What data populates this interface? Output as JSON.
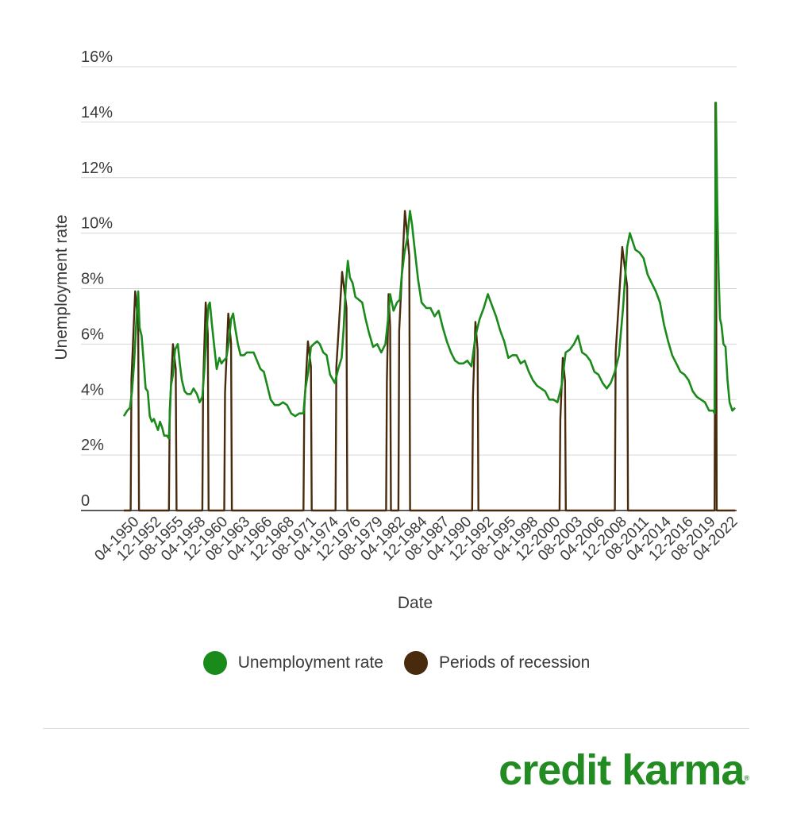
{
  "chart_data": {
    "type": "line",
    "xlabel": "Date",
    "ylabel": "Unemployment rate",
    "ylim": [
      0,
      16
    ],
    "x_range": [
      "01-1948",
      "08-2022"
    ],
    "y_ticks": [
      {
        "value": 0,
        "label": "0"
      },
      {
        "value": 2,
        "label": "2%"
      },
      {
        "value": 4,
        "label": "4%"
      },
      {
        "value": 6,
        "label": "6%"
      },
      {
        "value": 8,
        "label": "8%"
      },
      {
        "value": 10,
        "label": "10%"
      },
      {
        "value": 12,
        "label": "12%"
      },
      {
        "value": 14,
        "label": "14%"
      },
      {
        "value": 16,
        "label": "16%"
      }
    ],
    "x_tick_labels": [
      "04-1950",
      "12-1952",
      "08-1955",
      "04-1958",
      "12-1960",
      "08-1963",
      "04-1966",
      "12-1968",
      "08-1971",
      "04-1974",
      "12-1976",
      "08-1979",
      "04-1982",
      "12-1984",
      "08-1987",
      "04-1990",
      "12-1992",
      "08-1995",
      "04-1998",
      "12-2000",
      "08-2003",
      "04-2006",
      "12-2008",
      "08-2011",
      "04-2014",
      "12-2016",
      "08-2019",
      "04-2022"
    ],
    "grid": true,
    "legend_position": "bottom",
    "series": [
      {
        "name": "Unemployment rate",
        "color": "#1a8a1a",
        "points": [
          [
            "01-1948",
            3.4
          ],
          [
            "06-1948",
            3.6
          ],
          [
            "10-1948",
            3.7
          ],
          [
            "01-1949",
            4.3
          ],
          [
            "04-1949",
            5.3
          ],
          [
            "07-1949",
            6.7
          ],
          [
            "10-1949",
            7.9
          ],
          [
            "12-1949",
            6.6
          ],
          [
            "03-1950",
            6.3
          ],
          [
            "06-1950",
            5.4
          ],
          [
            "09-1950",
            4.4
          ],
          [
            "12-1950",
            4.3
          ],
          [
            "03-1951",
            3.4
          ],
          [
            "06-1951",
            3.2
          ],
          [
            "09-1951",
            3.3
          ],
          [
            "12-1951",
            3.1
          ],
          [
            "03-1952",
            2.9
          ],
          [
            "06-1952",
            3.2
          ],
          [
            "09-1952",
            3.0
          ],
          [
            "12-1952",
            2.7
          ],
          [
            "04-1953",
            2.7
          ],
          [
            "07-1953",
            2.6
          ],
          [
            "10-1953",
            4.5
          ],
          [
            "01-1954",
            4.9
          ],
          [
            "04-1954",
            5.8
          ],
          [
            "08-1954",
            6.0
          ],
          [
            "11-1954",
            5.3
          ],
          [
            "02-1955",
            4.7
          ],
          [
            "06-1955",
            4.3
          ],
          [
            "10-1955",
            4.2
          ],
          [
            "03-1956",
            4.2
          ],
          [
            "07-1956",
            4.4
          ],
          [
            "12-1956",
            4.2
          ],
          [
            "04-1957",
            3.9
          ],
          [
            "08-1957",
            4.1
          ],
          [
            "11-1957",
            5.1
          ],
          [
            "02-1958",
            6.4
          ],
          [
            "05-1958",
            7.4
          ],
          [
            "07-1958",
            7.5
          ],
          [
            "10-1958",
            6.7
          ],
          [
            "01-1959",
            6.0
          ],
          [
            "05-1959",
            5.1
          ],
          [
            "09-1959",
            5.5
          ],
          [
            "12-1959",
            5.3
          ],
          [
            "03-1960",
            5.4
          ],
          [
            "07-1960",
            5.5
          ],
          [
            "11-1960",
            6.1
          ],
          [
            "02-1961",
            6.9
          ],
          [
            "05-1961",
            7.1
          ],
          [
            "08-1961",
            6.6
          ],
          [
            "12-1961",
            6.0
          ],
          [
            "04-1962",
            5.6
          ],
          [
            "09-1962",
            5.6
          ],
          [
            "01-1963",
            5.7
          ],
          [
            "06-1963",
            5.7
          ],
          [
            "11-1963",
            5.7
          ],
          [
            "04-1964",
            5.4
          ],
          [
            "09-1964",
            5.1
          ],
          [
            "02-1965",
            5.0
          ],
          [
            "07-1965",
            4.5
          ],
          [
            "12-1965",
            4.0
          ],
          [
            "06-1966",
            3.8
          ],
          [
            "12-1966",
            3.8
          ],
          [
            "06-1967",
            3.9
          ],
          [
            "12-1967",
            3.8
          ],
          [
            "06-1968",
            3.5
          ],
          [
            "12-1968",
            3.4
          ],
          [
            "06-1969",
            3.5
          ],
          [
            "12-1969",
            3.5
          ],
          [
            "03-1970",
            4.4
          ],
          [
            "07-1970",
            5.0
          ],
          [
            "11-1970",
            5.9
          ],
          [
            "03-1971",
            6.0
          ],
          [
            "08-1971",
            6.1
          ],
          [
            "12-1971",
            6.0
          ],
          [
            "05-1972",
            5.7
          ],
          [
            "10-1972",
            5.6
          ],
          [
            "03-1973",
            4.9
          ],
          [
            "10-1973",
            4.6
          ],
          [
            "03-1974",
            5.1
          ],
          [
            "08-1974",
            5.5
          ],
          [
            "11-1974",
            6.6
          ],
          [
            "02-1975",
            8.1
          ],
          [
            "05-1975",
            9.0
          ],
          [
            "08-1975",
            8.4
          ],
          [
            "12-1975",
            8.2
          ],
          [
            "04-1976",
            7.7
          ],
          [
            "09-1976",
            7.6
          ],
          [
            "02-1977",
            7.5
          ],
          [
            "07-1977",
            6.9
          ],
          [
            "12-1977",
            6.4
          ],
          [
            "06-1978",
            5.9
          ],
          [
            "12-1978",
            6.0
          ],
          [
            "06-1979",
            5.7
          ],
          [
            "12-1979",
            6.0
          ],
          [
            "04-1980",
            6.9
          ],
          [
            "07-1980",
            7.8
          ],
          [
            "12-1980",
            7.2
          ],
          [
            "05-1981",
            7.5
          ],
          [
            "09-1981",
            7.6
          ],
          [
            "12-1981",
            8.5
          ],
          [
            "04-1982",
            9.3
          ],
          [
            "08-1982",
            9.8
          ],
          [
            "12-1982",
            10.8
          ],
          [
            "03-1983",
            10.3
          ],
          [
            "07-1983",
            9.4
          ],
          [
            "12-1983",
            8.3
          ],
          [
            "05-1984",
            7.5
          ],
          [
            "12-1984",
            7.3
          ],
          [
            "06-1985",
            7.3
          ],
          [
            "12-1985",
            7.0
          ],
          [
            "06-1986",
            7.2
          ],
          [
            "12-1986",
            6.6
          ],
          [
            "06-1987",
            6.1
          ],
          [
            "12-1987",
            5.7
          ],
          [
            "06-1988",
            5.4
          ],
          [
            "12-1988",
            5.3
          ],
          [
            "06-1989",
            5.3
          ],
          [
            "12-1989",
            5.4
          ],
          [
            "06-1990",
            5.2
          ],
          [
            "12-1990",
            6.3
          ],
          [
            "06-1991",
            6.9
          ],
          [
            "12-1991",
            7.3
          ],
          [
            "06-1992",
            7.8
          ],
          [
            "12-1992",
            7.4
          ],
          [
            "06-1993",
            7.0
          ],
          [
            "12-1993",
            6.5
          ],
          [
            "06-1994",
            6.1
          ],
          [
            "12-1994",
            5.5
          ],
          [
            "06-1995",
            5.6
          ],
          [
            "12-1995",
            5.6
          ],
          [
            "06-1996",
            5.3
          ],
          [
            "12-1996",
            5.4
          ],
          [
            "06-1997",
            5.0
          ],
          [
            "12-1997",
            4.7
          ],
          [
            "06-1998",
            4.5
          ],
          [
            "12-1998",
            4.4
          ],
          [
            "06-1999",
            4.3
          ],
          [
            "12-1999",
            4.0
          ],
          [
            "06-2000",
            4.0
          ],
          [
            "12-2000",
            3.9
          ],
          [
            "06-2001",
            4.5
          ],
          [
            "12-2001",
            5.7
          ],
          [
            "06-2002",
            5.8
          ],
          [
            "12-2002",
            6.0
          ],
          [
            "06-2003",
            6.3
          ],
          [
            "12-2003",
            5.7
          ],
          [
            "06-2004",
            5.6
          ],
          [
            "12-2004",
            5.4
          ],
          [
            "06-2005",
            5.0
          ],
          [
            "12-2005",
            4.9
          ],
          [
            "06-2006",
            4.6
          ],
          [
            "12-2006",
            4.4
          ],
          [
            "06-2007",
            4.6
          ],
          [
            "12-2007",
            5.0
          ],
          [
            "06-2008",
            5.6
          ],
          [
            "12-2008",
            7.3
          ],
          [
            "06-2009",
            9.5
          ],
          [
            "10-2009",
            10.0
          ],
          [
            "06-2010",
            9.4
          ],
          [
            "12-2010",
            9.3
          ],
          [
            "06-2011",
            9.1
          ],
          [
            "12-2011",
            8.5
          ],
          [
            "06-2012",
            8.2
          ],
          [
            "12-2012",
            7.9
          ],
          [
            "06-2013",
            7.5
          ],
          [
            "12-2013",
            6.7
          ],
          [
            "06-2014",
            6.1
          ],
          [
            "12-2014",
            5.6
          ],
          [
            "06-2015",
            5.3
          ],
          [
            "12-2015",
            5.0
          ],
          [
            "06-2016",
            4.9
          ],
          [
            "12-2016",
            4.7
          ],
          [
            "06-2017",
            4.3
          ],
          [
            "12-2017",
            4.1
          ],
          [
            "06-2018",
            4.0
          ],
          [
            "12-2018",
            3.9
          ],
          [
            "06-2019",
            3.6
          ],
          [
            "12-2019",
            3.6
          ],
          [
            "02-2020",
            3.5
          ],
          [
            "04-2020",
            14.7
          ],
          [
            "06-2020",
            11.0
          ],
          [
            "08-2020",
            8.4
          ],
          [
            "10-2020",
            6.9
          ],
          [
            "12-2020",
            6.7
          ],
          [
            "03-2021",
            6.0
          ],
          [
            "06-2021",
            5.9
          ],
          [
            "09-2021",
            4.7
          ],
          [
            "12-2021",
            3.9
          ],
          [
            "04-2022",
            3.6
          ],
          [
            "08-2022",
            3.7
          ]
        ]
      },
      {
        "name": "Periods of recession",
        "color": "#4a2a0c",
        "periods": [
          {
            "start": "11-1948",
            "end": "10-1949",
            "peak": 7.9
          },
          {
            "start": "07-1953",
            "end": "05-1954",
            "peak": 6.0
          },
          {
            "start": "08-1957",
            "end": "04-1958",
            "peak": 7.5
          },
          {
            "start": "04-1960",
            "end": "02-1961",
            "peak": 7.1
          },
          {
            "start": "12-1969",
            "end": "11-1970",
            "peak": 6.1
          },
          {
            "start": "11-1973",
            "end": "03-1975",
            "peak": 8.6
          },
          {
            "start": "01-1980",
            "end": "07-1980",
            "peak": 7.8
          },
          {
            "start": "07-1981",
            "end": "11-1982",
            "peak": 10.8
          },
          {
            "start": "07-1990",
            "end": "03-1991",
            "peak": 6.8
          },
          {
            "start": "03-2001",
            "end": "11-2001",
            "peak": 5.5
          },
          {
            "start": "12-2007",
            "end": "06-2009",
            "peak": 9.5
          },
          {
            "start": "02-2020",
            "end": "04-2020",
            "peak": 14.7
          }
        ]
      }
    ]
  },
  "legend": {
    "items": [
      {
        "label": "Unemployment rate",
        "color": "#1a8a1a"
      },
      {
        "label": "Periods of recession",
        "color": "#4a2a0c"
      }
    ]
  },
  "brand": {
    "name": "credit karma",
    "mark": "®",
    "color": "#228b22"
  }
}
